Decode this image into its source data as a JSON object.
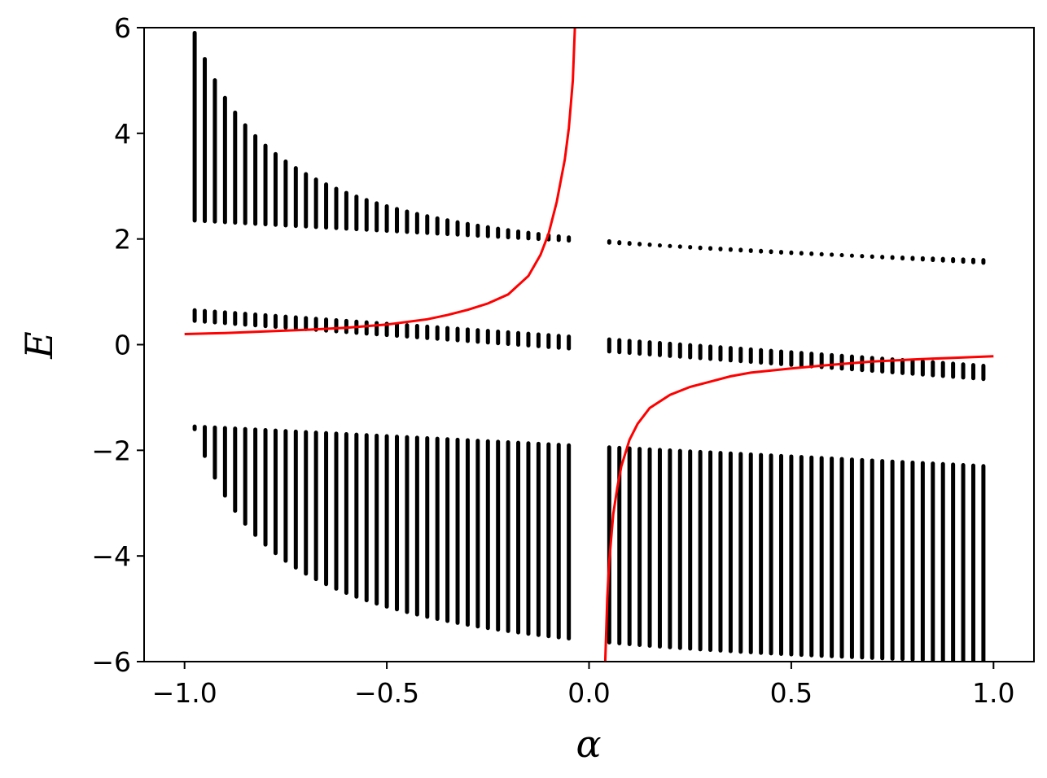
{
  "chart_data": {
    "type": "scatter",
    "title": "",
    "xlabel": "α",
    "ylabel": "E",
    "xlim": [
      -1.1,
      1.1
    ],
    "ylim": [
      -6,
      6
    ],
    "x_ticks": [
      -1.0,
      -0.5,
      0.0,
      0.5,
      1.0
    ],
    "x_tick_labels": [
      "−1.0",
      "−0.5",
      "0.0",
      "0.5",
      "1.0"
    ],
    "y_ticks": [
      -6,
      -4,
      -2,
      0,
      2,
      4,
      6
    ],
    "y_tick_labels": [
      "−6",
      "−4",
      "−2",
      "0",
      "2",
      "4",
      "6"
    ],
    "grid": false,
    "legend": "none",
    "colors": {
      "bands": "#000000",
      "curve": "#ff0000"
    },
    "alpha_samples": {
      "start": -0.975,
      "step": 0.025,
      "count": 79,
      "excluded": [
        -0.025,
        0.0,
        0.025
      ]
    },
    "bands": [
      {
        "lo_at_alpha_min": 2.35,
        "lo_at_alpha_max": 1.55,
        "hi_at_alpha_min": 5.9,
        "hi_at_alpha_max": 1.6,
        "hi_shape": "reciprocal"
      },
      {
        "lo_at_alpha_min": 0.45,
        "lo_at_alpha_max": -0.65,
        "hi_at_alpha_min": 0.65,
        "hi_at_alpha_max": -0.4,
        "hi_shape": "linear"
      },
      {
        "lo_at_alpha_min": -1.6,
        "lo_at_alpha_max": -6.0,
        "hi_at_alpha_min": -1.55,
        "hi_at_alpha_max": -2.3,
        "lo_shape": "reciprocal"
      }
    ],
    "curves": [
      {
        "x": [
          -1.0,
          -0.9,
          -0.8,
          -0.7,
          -0.6,
          -0.5,
          -0.4,
          -0.35,
          -0.3,
          -0.25,
          -0.2,
          -0.15,
          -0.12,
          -0.1,
          -0.08,
          -0.06,
          -0.05,
          -0.04,
          -0.035
        ],
        "y": [
          0.2,
          0.22,
          0.25,
          0.28,
          0.32,
          0.38,
          0.48,
          0.56,
          0.66,
          0.78,
          0.95,
          1.3,
          1.7,
          2.1,
          2.7,
          3.5,
          4.1,
          5.0,
          6.0
        ]
      },
      {
        "x": [
          0.04,
          0.045,
          0.05,
          0.06,
          0.07,
          0.08,
          0.1,
          0.12,
          0.15,
          0.2,
          0.25,
          0.3,
          0.35,
          0.4,
          0.5,
          0.6,
          0.7,
          0.8,
          0.9,
          1.0
        ],
        "y": [
          -6.0,
          -4.8,
          -4.1,
          -3.2,
          -2.7,
          -2.3,
          -1.8,
          -1.5,
          -1.2,
          -0.95,
          -0.8,
          -0.7,
          -0.6,
          -0.53,
          -0.45,
          -0.38,
          -0.32,
          -0.28,
          -0.25,
          -0.22
        ]
      }
    ]
  }
}
